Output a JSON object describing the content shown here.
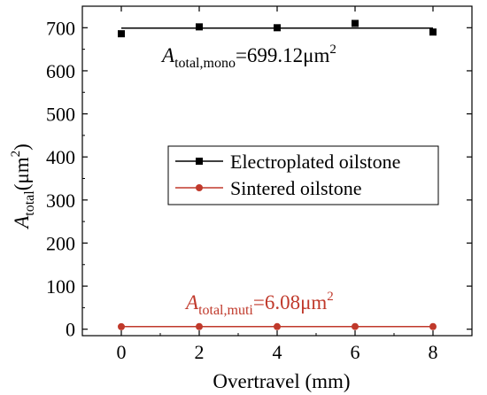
{
  "chart_data": {
    "type": "line",
    "xlabel": "Overtravel (mm)",
    "ylabel": {
      "main": "A",
      "sub": "total",
      "unit_prefix": "(μm",
      "unit_sup": "2",
      "unit_suffix": ")"
    },
    "xlim": [
      -1,
      9
    ],
    "ylim": [
      -15,
      750
    ],
    "xticks": [
      0,
      2,
      4,
      6,
      8
    ],
    "yticks": [
      0,
      100,
      200,
      300,
      400,
      500,
      600,
      700
    ],
    "grid": false,
    "legend_position": "center-right",
    "series": [
      {
        "name": "Electroplated oilstone",
        "color": "#000000",
        "marker": "square",
        "x": [
          0,
          2,
          4,
          6,
          8
        ],
        "y": [
          686,
          702,
          700,
          710,
          690
        ],
        "fit": 699.12
      },
      {
        "name": "Sintered oilstone",
        "color": "#c0392b",
        "marker": "circle",
        "x": [
          0,
          2,
          4,
          6,
          8
        ],
        "y": [
          5.8,
          6.1,
          6.0,
          6.2,
          6.1
        ],
        "fit": 6.08
      }
    ],
    "annotations": [
      {
        "main": "A",
        "sub": "total,mono",
        "value": "=699.12μm",
        "sup": "2",
        "color": "#000000"
      },
      {
        "main": "A",
        "sub": "total,muti",
        "value": "=6.08μm",
        "sup": "2",
        "color": "#c0392b"
      }
    ]
  }
}
